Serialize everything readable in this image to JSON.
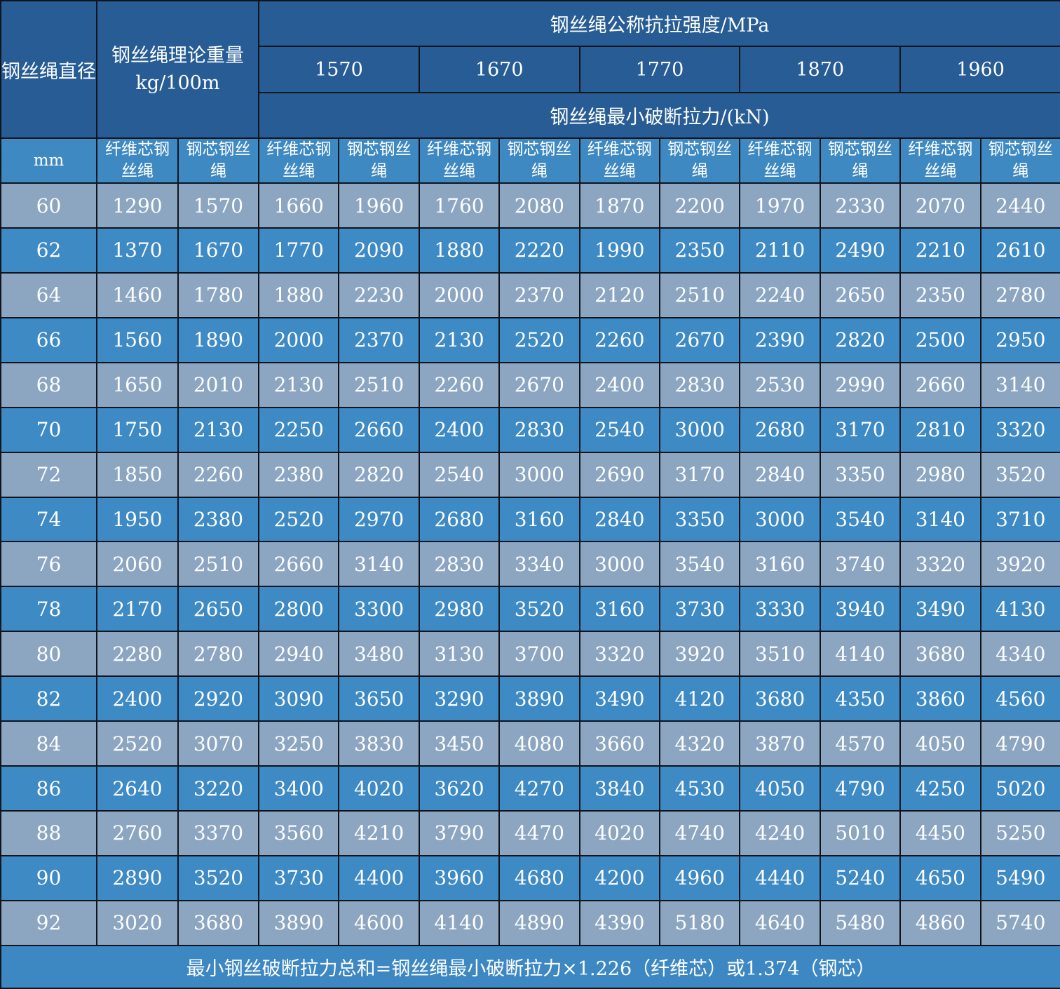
{
  "colors": {
    "header_bg": "#275d94",
    "subheader_bg": "#3e89c2",
    "row_light_bg": "#8ca6c2",
    "row_dark_bg": "#3e8ac4",
    "footer_bg": "#3d88c2",
    "grid_line": "#10141c",
    "text": "#ffffff"
  },
  "table": {
    "diameter_header": "钢丝绳直径",
    "diameter_unit": "mm",
    "weight_header_line1": "钢丝绳理论重量",
    "weight_header_line2": "kg/100m",
    "strength_band_label": "钢丝绳公称抗拉强度/MPa",
    "strength_grades": [
      "1570",
      "1670",
      "1770",
      "1870",
      "1960"
    ],
    "breaking_force_band_label": "钢丝绳最小破断拉力/(kN)",
    "fiber_core_label": "纤维芯钢丝绳",
    "steel_core_label": "钢芯钢丝绳",
    "rows": [
      {
        "diameter": "60",
        "values": [
          "1290",
          "1570",
          "1660",
          "1960",
          "1760",
          "2080",
          "1870",
          "2200",
          "1970",
          "2330",
          "2070",
          "2440"
        ]
      },
      {
        "diameter": "62",
        "values": [
          "1370",
          "1670",
          "1770",
          "2090",
          "1880",
          "2220",
          "1990",
          "2350",
          "2110",
          "2490",
          "2210",
          "2610"
        ]
      },
      {
        "diameter": "64",
        "values": [
          "1460",
          "1780",
          "1880",
          "2230",
          "2000",
          "2370",
          "2120",
          "2510",
          "2240",
          "2650",
          "2350",
          "2780"
        ]
      },
      {
        "diameter": "66",
        "values": [
          "1560",
          "1890",
          "2000",
          "2370",
          "2130",
          "2520",
          "2260",
          "2670",
          "2390",
          "2820",
          "2500",
          "2950"
        ]
      },
      {
        "diameter": "68",
        "values": [
          "1650",
          "2010",
          "2130",
          "2510",
          "2260",
          "2670",
          "2400",
          "2830",
          "2530",
          "2990",
          "2660",
          "3140"
        ]
      },
      {
        "diameter": "70",
        "values": [
          "1750",
          "2130",
          "2250",
          "2660",
          "2400",
          "2830",
          "2540",
          "3000",
          "2680",
          "3170",
          "2810",
          "3320"
        ]
      },
      {
        "diameter": "72",
        "values": [
          "1850",
          "2260",
          "2380",
          "2820",
          "2540",
          "3000",
          "2690",
          "3170",
          "2840",
          "3350",
          "2980",
          "3520"
        ]
      },
      {
        "diameter": "74",
        "values": [
          "1950",
          "2380",
          "2520",
          "2970",
          "2680",
          "3160",
          "2840",
          "3350",
          "3000",
          "3540",
          "3140",
          "3710"
        ]
      },
      {
        "diameter": "76",
        "values": [
          "2060",
          "2510",
          "2660",
          "3140",
          "2830",
          "3340",
          "3000",
          "3540",
          "3160",
          "3740",
          "3320",
          "3920"
        ]
      },
      {
        "diameter": "78",
        "values": [
          "2170",
          "2650",
          "2800",
          "3300",
          "2980",
          "3520",
          "3160",
          "3730",
          "3330",
          "3940",
          "3490",
          "4130"
        ]
      },
      {
        "diameter": "80",
        "values": [
          "2280",
          "2780",
          "2940",
          "3480",
          "3130",
          "3700",
          "3320",
          "3920",
          "3510",
          "4140",
          "3680",
          "4340"
        ]
      },
      {
        "diameter": "82",
        "values": [
          "2400",
          "2920",
          "3090",
          "3650",
          "3290",
          "3890",
          "3490",
          "4120",
          "3680",
          "4350",
          "3860",
          "4560"
        ]
      },
      {
        "diameter": "84",
        "values": [
          "2520",
          "3070",
          "3250",
          "3830",
          "3450",
          "4080",
          "3660",
          "4320",
          "3870",
          "4570",
          "4050",
          "4790"
        ]
      },
      {
        "diameter": "86",
        "values": [
          "2640",
          "3220",
          "3400",
          "4020",
          "3620",
          "4270",
          "3840",
          "4530",
          "4050",
          "4790",
          "4250",
          "5020"
        ]
      },
      {
        "diameter": "88",
        "values": [
          "2760",
          "3370",
          "3560",
          "4210",
          "3790",
          "4470",
          "4020",
          "4740",
          "4240",
          "5010",
          "4450",
          "5250"
        ]
      },
      {
        "diameter": "90",
        "values": [
          "2890",
          "3520",
          "3730",
          "4400",
          "3960",
          "4680",
          "4200",
          "4960",
          "4440",
          "5240",
          "4650",
          "5490"
        ]
      },
      {
        "diameter": "92",
        "values": [
          "3020",
          "3680",
          "3890",
          "4600",
          "4140",
          "4890",
          "4390",
          "5180",
          "4640",
          "5480",
          "4860",
          "5740"
        ]
      }
    ],
    "footer_note": "最小钢丝破断拉力总和=钢丝绳最小破断拉力×1.226（纤维芯）或1.374（钢芯）"
  }
}
